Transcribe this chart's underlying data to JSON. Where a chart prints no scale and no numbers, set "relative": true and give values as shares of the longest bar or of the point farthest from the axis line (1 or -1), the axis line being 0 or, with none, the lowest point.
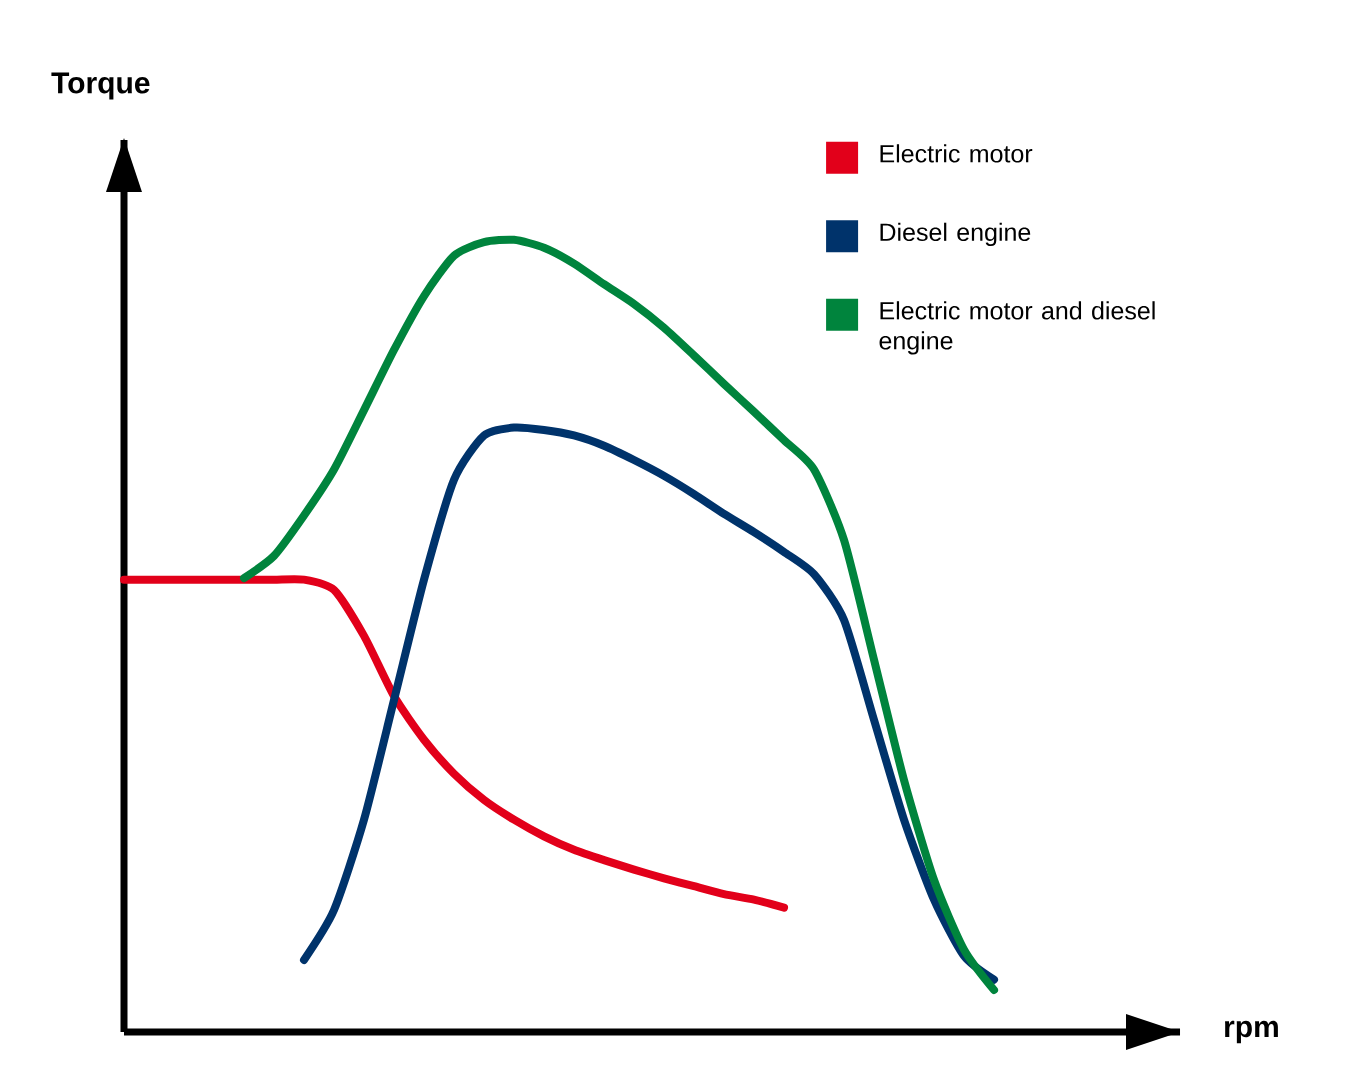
{
  "chart_data": {
    "type": "line",
    "relative": true,
    "annotations": [
      "rpm"
    ],
    "ylabel": "Torque",
    "legend": "top right",
    "marker": "none",
    "line_style": "solid",
    "categories": [
      null,
      null,
      null,
      null,
      null,
      null,
      null,
      null,
      null,
      null,
      null,
      null,
      null,
      null,
      null,
      null,
      null,
      null,
      null,
      null,
      null,
      null,
      null,
      null,
      null,
      null,
      null,
      null,
      null,
      null
    ],
    "series": [
      {
        "name": "Electric motor",
        "color": "#e2001a",
        "values": [
          0.571,
          0.571,
          0.571,
          0.571,
          0.571,
          0.571,
          0.571,
          0.558,
          0.5,
          0.424,
          0.369,
          0.326,
          0.293,
          0.268,
          0.247,
          0.23,
          0.217,
          0.205,
          0.194,
          0.184,
          0.174,
          0.167,
          0.157,
          null,
          null,
          null,
          null,
          null,
          null,
          null
        ]
      },
      {
        "name": "Diesel engine",
        "color": "#00336b",
        "values": [
          null,
          null,
          null,
          null,
          null,
          null,
          0.091,
          0.154,
          0.268,
          0.419,
          0.571,
          0.697,
          0.753,
          0.763,
          0.76,
          0.753,
          0.74,
          0.722,
          0.702,
          0.679,
          0.654,
          0.631,
          0.606,
          0.578,
          0.52,
          0.394,
          0.268,
          0.167,
          0.096,
          0.066
        ]
      },
      {
        "name": "Electric motor and diesel engine",
        "color": "#00843d",
        "values": [
          null,
          null,
          null,
          null,
          0.573,
          0.601,
          0.652,
          0.71,
          0.785,
          0.861,
          0.929,
          0.98,
          0.997,
          1,
          0.99,
          0.97,
          0.944,
          0.919,
          0.889,
          0.854,
          0.818,
          0.783,
          0.747,
          0.71,
          0.621,
          0.47,
          0.318,
          0.192,
          0.104,
          0.053
        ]
      }
    ]
  }
}
